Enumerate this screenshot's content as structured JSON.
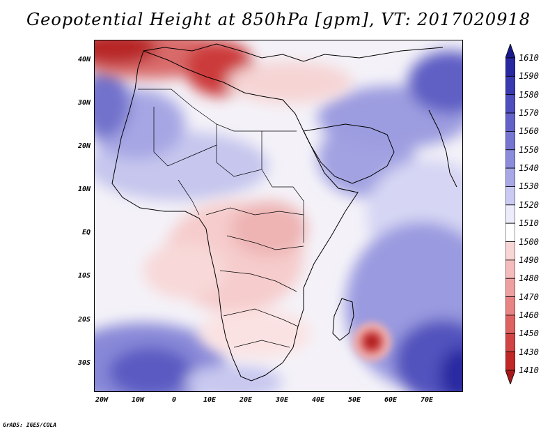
{
  "title": "Geopotential Height at 850hPa [gpm], VT: 2017020918",
  "footer": "GrADS: IGES/COLA",
  "axes": {
    "lat_labels": [
      "40N",
      "30N",
      "20N",
      "10N",
      "EQ",
      "10S",
      "20S",
      "30S"
    ],
    "lat_values": [
      40,
      30,
      20,
      10,
      0,
      -10,
      -20,
      -30
    ],
    "lon_labels": [
      "20W",
      "10W",
      "0",
      "10E",
      "20E",
      "30E",
      "40E",
      "50E",
      "60E",
      "70E"
    ],
    "lon_values": [
      -20,
      -10,
      0,
      10,
      20,
      30,
      40,
      50,
      60,
      70
    ]
  },
  "colorbar": {
    "labels": [
      "1610",
      "1590",
      "1580",
      "1570",
      "1560",
      "1550",
      "1540",
      "1530",
      "1520",
      "1510",
      "1500",
      "1490",
      "1480",
      "1470",
      "1460",
      "1450",
      "1430",
      "1410"
    ],
    "colors": [
      "#1a1a8c",
      "#2828a0",
      "#3a3ab0",
      "#4e4ebe",
      "#6262c8",
      "#7676d2",
      "#8c8cdc",
      "#a8a8e6",
      "#cacaf2",
      "#ececfa",
      "#ffffff",
      "#f9d6d6",
      "#f4bcbc",
      "#eea0a0",
      "#e88484",
      "#df6262",
      "#d24444",
      "#c02828",
      "#a81818"
    ]
  },
  "fields": {
    "blue_regions": [
      "Atlantic west of Morocco",
      "Sahara",
      "Arabian Peninsula",
      "Iran/Himalaya",
      "South Atlantic",
      "Southwest Indian Ocean"
    ],
    "red_regions": [
      "Western Mediterranean",
      "Central Africa",
      "East African highlands",
      "Low east of Madagascar"
    ]
  }
}
